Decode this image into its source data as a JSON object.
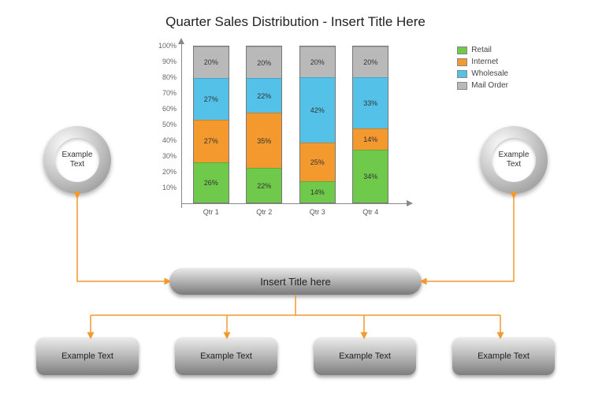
{
  "title": "Quarter Sales Distribution  - Insert Title Here",
  "chart": {
    "type": "stacked-bar-100",
    "ylim": [
      0,
      100
    ],
    "ytick_step": 10,
    "ytick_suffix": "%",
    "categories": [
      "Qtr 1",
      "Qtr 2",
      "Qtr 3",
      "Qtr 4"
    ],
    "series": [
      {
        "name": "Retail",
        "color": "#6fc94b",
        "values": [
          26,
          22,
          14,
          34
        ]
      },
      {
        "name": "Internet",
        "color": "#f3992e",
        "values": [
          27,
          35,
          25,
          14
        ]
      },
      {
        "name": "Wholesale",
        "color": "#53c1e8",
        "values": [
          27,
          22,
          42,
          33
        ]
      },
      {
        "name": "Mail Order",
        "color": "#b9b9b9",
        "values": [
          20,
          20,
          20,
          20
        ]
      }
    ],
    "value_suffix": "%",
    "axis_color": "#888888",
    "label_fontsize": 9,
    "background_color": "#ffffff"
  },
  "rings": {
    "left_label": "Example Text",
    "right_label": "Example Text"
  },
  "center_pill": {
    "label": "Insert Title here"
  },
  "bottom_boxes": [
    "Example Text",
    "Example Text",
    "Example Text",
    "Example Text"
  ],
  "connector_color": "#f3992e"
}
